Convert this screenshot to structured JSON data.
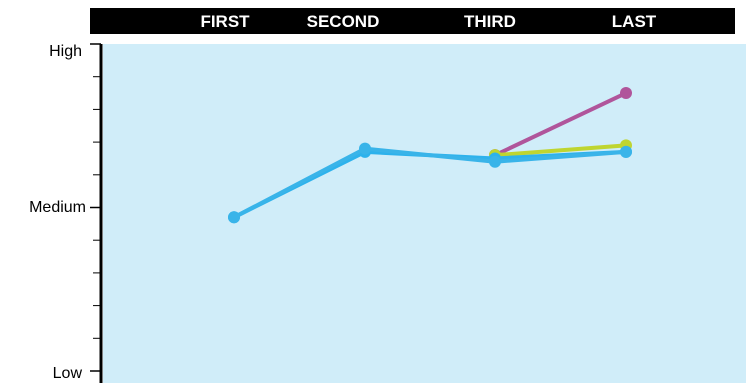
{
  "chart_data": {
    "type": "line",
    "categories": [
      "FIRST",
      "SECOND",
      "THIRD",
      "LAST"
    ],
    "y_levels": [
      "Low",
      "Medium",
      "High"
    ],
    "ylim": [
      0,
      1
    ],
    "grid": false,
    "colors": {
      "header_bg": "#000000",
      "plot_bg": "#d0edf9",
      "axis": "#000000"
    },
    "series": [
      {
        "color": "#b0559b",
        "values": [
          null,
          null,
          0.66,
          0.85
        ]
      },
      {
        "color": "#bfd530",
        "values": [
          null,
          null,
          0.66,
          0.69
        ]
      },
      {
        "color": "#2db2ec",
        "values": [
          0.47,
          0.67,
          0.65,
          0.67
        ]
      },
      {
        "color": "#39b4e9",
        "values": [
          0.47,
          0.68,
          0.64,
          0.67
        ]
      }
    ]
  }
}
